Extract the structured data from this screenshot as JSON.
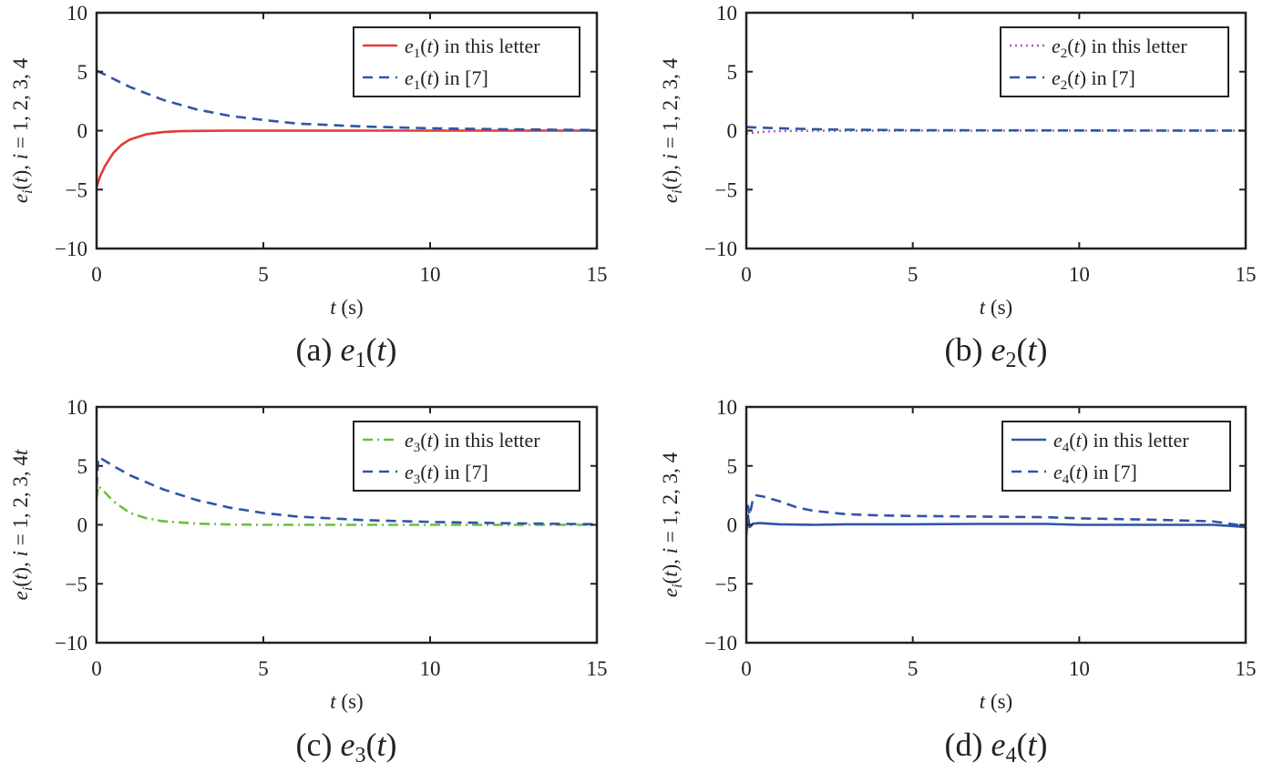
{
  "figure": {
    "panels": [
      {
        "caption": {
          "prefix": "(a) ",
          "sym": "e",
          "sub": "1",
          "suffix": "(t)"
        },
        "xlabel": {
          "var": "t",
          "unit": " (s)"
        },
        "ylabel": {
          "e": "e",
          "sub": "i",
          "rest": "(t), i = 1, 2, 3, 4"
        },
        "legend": [
          {
            "sym": "e",
            "sub": "1",
            "mid": "(t)",
            "text": " in this letter"
          },
          {
            "sym": "e",
            "sub": "1",
            "mid": "(t)",
            "text": " in [7]"
          }
        ]
      },
      {
        "caption": {
          "prefix": "(b) ",
          "sym": "e",
          "sub": "2",
          "suffix": "(t)"
        },
        "xlabel": {
          "var": "t",
          "unit": " (s)"
        },
        "ylabel": {
          "e": "e",
          "sub": "i",
          "rest": "(t), i = 1, 2, 3, 4"
        },
        "legend": [
          {
            "sym": "e",
            "sub": "2",
            "mid": "(t)",
            "text": " in this letter"
          },
          {
            "sym": "e",
            "sub": "2",
            "mid": "(t)",
            "text": " in [7]"
          }
        ]
      },
      {
        "caption": {
          "prefix": "(c) ",
          "sym": "e",
          "sub": "3",
          "suffix": "(t)"
        },
        "xlabel": {
          "var": "t",
          "unit": " (s)"
        },
        "ylabel": {
          "e": "e",
          "sub": "i",
          "rest": "(t), i = 1, 2, 3, 4t"
        },
        "legend": [
          {
            "sym": "e",
            "sub": "3",
            "mid": "(t)",
            "text": " in this letter"
          },
          {
            "sym": "e",
            "sub": "3",
            "mid": "(t)",
            "text": " in [7]"
          }
        ]
      },
      {
        "caption": {
          "prefix": "(d) ",
          "sym": "e",
          "sub": "4",
          "suffix": "(t)"
        },
        "xlabel": {
          "var": "t",
          "unit": " (s)"
        },
        "ylabel": {
          "e": "e",
          "sub": "i",
          "rest": "(t), i = 1, 2, 3, 4"
        },
        "legend": [
          {
            "sym": "e",
            "sub": "4",
            "mid": "(t)",
            "text": " in this letter"
          },
          {
            "sym": "e",
            "sub": "4",
            "mid": "(t)",
            "text": " in [7]"
          }
        ]
      }
    ]
  },
  "chart_data": [
    {
      "type": "line",
      "xlim": [
        0,
        15
      ],
      "ylim": [
        -10,
        10
      ],
      "xticks": [
        0,
        5,
        10,
        15
      ],
      "yticks": [
        -10,
        -5,
        0,
        5,
        10
      ],
      "ytick_labels": [
        "−10",
        "−5",
        "0",
        "5",
        "10"
      ],
      "grid": false,
      "legend_position": "top-right",
      "series": [
        {
          "name": "e1(t) in this letter",
          "color": "#e03a3a",
          "style": "solid",
          "x": [
            0,
            0.1,
            0.25,
            0.5,
            0.75,
            1,
            1.5,
            2,
            2.5,
            3,
            4,
            5,
            7,
            10,
            15
          ],
          "y": [
            -4.8,
            -3.9,
            -3.0,
            -1.9,
            -1.2,
            -0.75,
            -0.3,
            -0.12,
            -0.05,
            -0.02,
            0,
            0,
            0,
            0,
            0
          ]
        },
        {
          "name": "e1(t) in [7]",
          "color": "#2f55a4",
          "style": "dashed",
          "x": [
            0,
            1,
            2,
            3,
            4,
            5,
            6,
            8,
            10,
            12,
            15
          ],
          "y": [
            5.1,
            3.7,
            2.6,
            1.8,
            1.25,
            0.9,
            0.6,
            0.35,
            0.2,
            0.12,
            0.05
          ]
        }
      ]
    },
    {
      "type": "line",
      "xlim": [
        0,
        15
      ],
      "ylim": [
        -10,
        10
      ],
      "xticks": [
        0,
        5,
        10,
        15
      ],
      "yticks": [
        -10,
        -5,
        0,
        5,
        10
      ],
      "ytick_labels": [
        "−10",
        "−5",
        "0",
        "5",
        "10"
      ],
      "grid": false,
      "legend_position": "top-right",
      "series": [
        {
          "name": "e2(t) in this letter",
          "color": "#b05fb0",
          "style": "dotted",
          "x": [
            0,
            0.3,
            0.6,
            1,
            2,
            4,
            15
          ],
          "y": [
            -0.25,
            -0.15,
            -0.08,
            -0.04,
            -0.01,
            0,
            0
          ]
        },
        {
          "name": "e2(t) in [7]",
          "color": "#2f55a4",
          "style": "dashed",
          "x": [
            0,
            0.5,
            1,
            2,
            3,
            5,
            8,
            15
          ],
          "y": [
            0.3,
            0.25,
            0.2,
            0.12,
            0.08,
            0.04,
            0.02,
            0
          ]
        }
      ]
    },
    {
      "type": "line",
      "xlim": [
        0,
        15
      ],
      "ylim": [
        -10,
        10
      ],
      "xticks": [
        0,
        5,
        10,
        15
      ],
      "yticks": [
        -10,
        -5,
        0,
        5,
        10
      ],
      "ytick_labels": [
        "−10",
        "−5",
        "0",
        "5",
        "10"
      ],
      "grid": false,
      "legend_position": "top-right",
      "series": [
        {
          "name": "e3(t) in this letter",
          "color": "#6bbf3b",
          "style": "dashdot",
          "x": [
            0,
            0.05,
            0.2,
            0.5,
            1,
            1.5,
            2,
            3,
            4,
            5,
            15
          ],
          "y": [
            2.2,
            3.3,
            2.9,
            2.0,
            1.0,
            0.55,
            0.3,
            0.1,
            0.03,
            0,
            0
          ]
        },
        {
          "name": "e3(t) in [7]",
          "color": "#2f55a4",
          "style": "dashed",
          "x": [
            0,
            0.05,
            0.15,
            0.5,
            1,
            2,
            3,
            4,
            5,
            6,
            8,
            10,
            12,
            15
          ],
          "y": [
            3.2,
            5.7,
            5.6,
            5.0,
            4.2,
            3.0,
            2.1,
            1.45,
            1.0,
            0.7,
            0.4,
            0.25,
            0.15,
            0.05
          ]
        }
      ]
    },
    {
      "type": "line",
      "xlim": [
        0,
        15
      ],
      "ylim": [
        -10,
        10
      ],
      "xticks": [
        0,
        5,
        10,
        15
      ],
      "yticks": [
        -10,
        -5,
        0,
        5,
        10
      ],
      "ytick_labels": [
        "−10",
        "−5",
        "0",
        "5",
        "10"
      ],
      "grid": false,
      "legend_position": "top-right",
      "series": [
        {
          "name": "e4(t) in this letter",
          "color": "#2f55a4",
          "style": "solid",
          "x": [
            0,
            0.05,
            0.1,
            0.2,
            0.4,
            1,
            2,
            3,
            5,
            7,
            9,
            10,
            12,
            14,
            14.6,
            15
          ],
          "y": [
            -0.9,
            0.8,
            -0.2,
            0.1,
            0.15,
            0.05,
            0,
            0.05,
            0.05,
            0.08,
            0.08,
            0,
            0,
            0,
            -0.1,
            -0.2
          ]
        },
        {
          "name": "e4(t) in [7]",
          "color": "#2f55a4",
          "style": "dashed",
          "x": [
            0,
            0.05,
            0.1,
            0.2,
            0.3,
            0.5,
            1,
            1.5,
            2,
            3,
            4,
            5,
            7,
            9,
            10,
            12,
            14,
            15
          ],
          "y": [
            0,
            1.6,
            0.8,
            2.2,
            2.5,
            2.4,
            2.0,
            1.5,
            1.2,
            0.9,
            0.8,
            0.75,
            0.7,
            0.65,
            0.55,
            0.45,
            0.3,
            -0.1
          ]
        }
      ]
    }
  ]
}
